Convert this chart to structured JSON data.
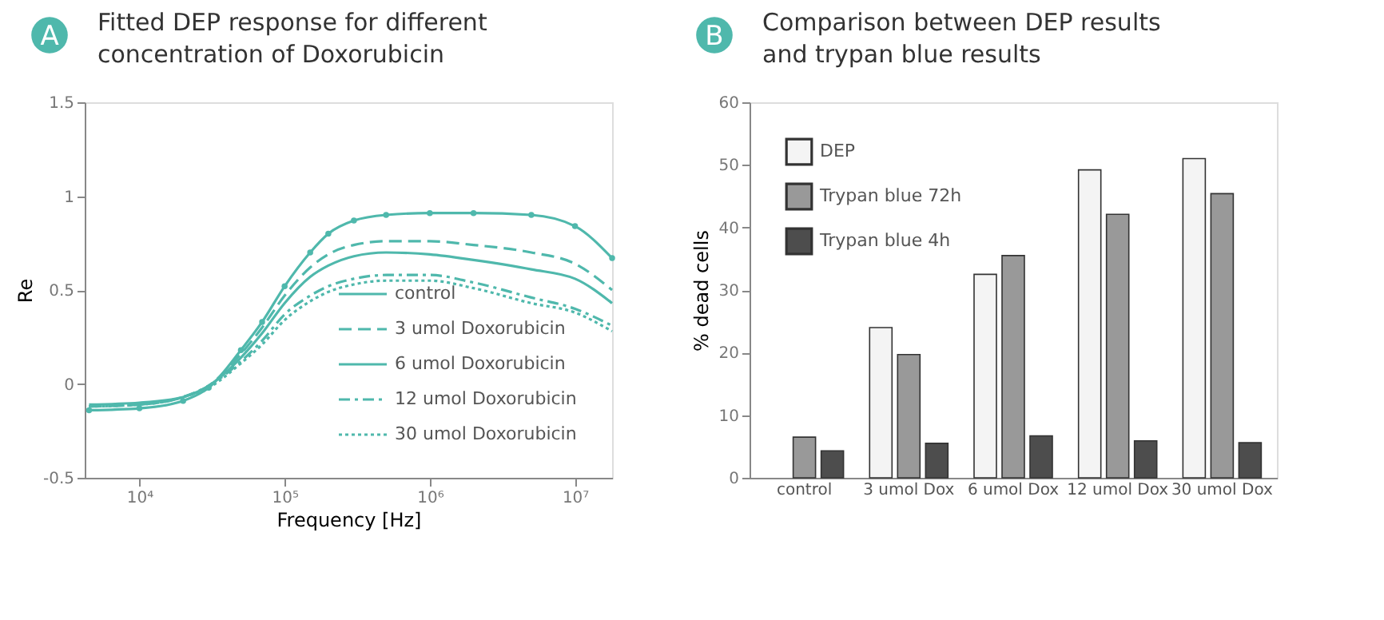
{
  "chart_data": [
    {
      "type": "line",
      "title": "Fitted DEP response for different concentration of Doxorubicin",
      "annotations": [
        "A"
      ],
      "xlabel": "Frequency [Hz]",
      "ylabel": "Re",
      "log": "x",
      "legend": "bottom right",
      "xlim": [
        4200,
        18000000
      ],
      "xticks": [
        {
          "value": 10000,
          "label": "10⁴"
        },
        {
          "value": 100000,
          "label": "10⁵"
        },
        {
          "value": 1000000,
          "label": "10⁶"
        },
        {
          "value": 10000000,
          "label": "10⁷"
        }
      ],
      "ylim": [
        -0.5,
        1.5
      ],
      "yticks": [
        -0.5,
        0,
        0.5,
        1,
        1.5
      ],
      "x": [
        4500,
        10000,
        20000,
        30000,
        50000,
        70000,
        100000,
        150000,
        200000,
        300000,
        500000,
        1000000,
        2000000,
        5000000,
        10000000,
        18000000
      ],
      "series": [
        {
          "name": "control",
          "color": "#4fb8ac",
          "line_style": "solid",
          "marker": "circle",
          "values": [
            -0.14,
            -0.13,
            -0.09,
            -0.02,
            0.18,
            0.33,
            0.52,
            0.7,
            0.8,
            0.87,
            0.9,
            0.91,
            0.91,
            0.9,
            0.84,
            0.67
          ]
        },
        {
          "name": "3 umol Doxorubicin",
          "color": "#4fb8ac",
          "line_style": "dashed",
          "marker": "none",
          "values": [
            -0.12,
            -0.11,
            -0.07,
            -0.01,
            0.16,
            0.3,
            0.47,
            0.62,
            0.69,
            0.74,
            0.76,
            0.76,
            0.74,
            0.7,
            0.64,
            0.5
          ]
        },
        {
          "name": "6 umol Doxorubicin",
          "color": "#4fb8ac",
          "line_style": "solid",
          "marker": "none",
          "values": [
            -0.11,
            -0.1,
            -0.07,
            -0.01,
            0.14,
            0.27,
            0.43,
            0.57,
            0.63,
            0.68,
            0.7,
            0.69,
            0.66,
            0.61,
            0.56,
            0.43
          ]
        },
        {
          "name": "12 umol Doxorubicin",
          "color": "#4fb8ac",
          "line_style": "dashdot",
          "marker": "none",
          "values": [
            -0.12,
            -0.11,
            -0.07,
            -0.01,
            0.12,
            0.23,
            0.37,
            0.47,
            0.52,
            0.56,
            0.58,
            0.58,
            0.54,
            0.46,
            0.4,
            0.31
          ]
        },
        {
          "name": "30 umol Doxorubicin",
          "color": "#4fb8ac",
          "line_style": "dotted",
          "marker": "none",
          "values": [
            -0.12,
            -0.11,
            -0.07,
            -0.02,
            0.11,
            0.21,
            0.34,
            0.44,
            0.49,
            0.53,
            0.55,
            0.55,
            0.51,
            0.43,
            0.38,
            0.28
          ]
        }
      ]
    },
    {
      "type": "bar",
      "title": "Comparison between DEP results and trypan blue results",
      "annotations": [
        "B"
      ],
      "ylabel": "% dead cells",
      "legend": "top left",
      "categories": [
        "control",
        "3 umol Dox",
        "6 umol Dox",
        "12 umol Dox",
        "30 umol Dox"
      ],
      "ylim": [
        0,
        60
      ],
      "yticks": [
        0,
        10,
        20,
        30,
        40,
        50,
        60
      ],
      "series": [
        {
          "name": "DEP",
          "color": "#f4f4f4",
          "values": [
            null,
            24,
            32.5,
            49.2,
            51
          ]
        },
        {
          "name": "Trypan blue 72h",
          "color": "#999999",
          "values": [
            6.5,
            19.7,
            35.5,
            42.1,
            45.4
          ]
        },
        {
          "name": "Trypan blue 4h",
          "color": "#4d4d4d",
          "values": [
            4.3,
            5.5,
            6.7,
            5.9,
            5.6
          ]
        }
      ]
    }
  ]
}
